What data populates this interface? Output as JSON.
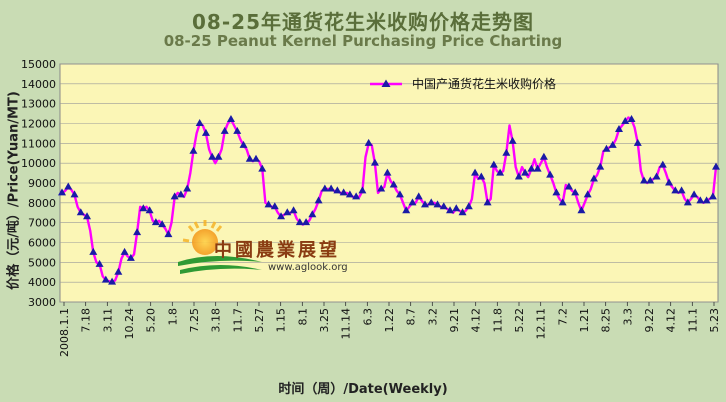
{
  "title_zh": "08-25年通货花生米收购价格走势图",
  "title_en": "08-25 Peanut Kernel Purchasing Price Charting",
  "logo": {
    "name": "中國農業展望",
    "url": "www.aglook.org"
  },
  "colors": {
    "plot_bg": "#fbf6b6",
    "outer_bg": "#c9dcb4",
    "line": "#ff00ff",
    "marker": "#1a1aa6"
  },
  "chart_data": {
    "type": "line",
    "xlabel": "时间（周）/Date(Weekly)",
    "ylabel": "价格（元/吨）/Price(Yuan/MT)",
    "ylim": [
      3000,
      15000
    ],
    "yticks": [
      3000,
      4000,
      5000,
      6000,
      7000,
      8000,
      9000,
      10000,
      11000,
      12000,
      13000,
      14000,
      15000
    ],
    "grid": true,
    "legend_position": "top-right",
    "x_tick_labels": [
      "2008.1.1",
      "7.18",
      "3.11",
      "10.24",
      "5.20",
      "1.8",
      "7.25",
      "3.18",
      "11.7",
      "5.27",
      "1.15",
      "8.1",
      "3.25",
      "11.14",
      "6.3",
      "1.22",
      "8.7",
      "3.2",
      "9.21",
      "4.12",
      "11.8",
      "5.22",
      "12.11",
      "7.2",
      "1.21",
      "8.25",
      "3.3",
      "9.22",
      "4.12",
      "11.1",
      "5.23"
    ],
    "series": [
      {
        "name": "中国产通货花生米收购价格",
        "values": [
          8500,
          8600,
          8800,
          8650,
          8400,
          7800,
          7500,
          7400,
          7300,
          6600,
          5500,
          5000,
          4900,
          4300,
          4100,
          4050,
          4000,
          4100,
          4500,
          5200,
          5500,
          5300,
          5200,
          5400,
          6500,
          7800,
          7700,
          7800,
          7600,
          7100,
          7000,
          7100,
          6900,
          6700,
          6400,
          7000,
          8300,
          8500,
          8400,
          8300,
          8700,
          9500,
          10600,
          11500,
          12000,
          11900,
          11500,
          10700,
          10300,
          10000,
          10300,
          10700,
          11600,
          12000,
          12200,
          11900,
          11600,
          11200,
          10900,
          10700,
          10200,
          10100,
          10200,
          10100,
          9700,
          8000,
          7900,
          7800,
          7800,
          7500,
          7300,
          7400,
          7500,
          7500,
          7600,
          7200,
          7000,
          6900,
          7000,
          7100,
          7400,
          7700,
          8100,
          8600,
          8700,
          8700,
          8700,
          8600,
          8600,
          8500,
          8500,
          8500,
          8400,
          8300,
          8300,
          8300,
          8600,
          10300,
          11000,
          10900,
          10000,
          8500,
          8700,
          8800,
          9500,
          9100,
          8900,
          8600,
          8400,
          8000,
          7600,
          7800,
          8000,
          8000,
          8300,
          8100,
          7900,
          7900,
          8000,
          8000,
          7900,
          7800,
          7800,
          7700,
          7600,
          7500,
          7700,
          7600,
          7500,
          7600,
          7800,
          8200,
          9500,
          9200,
          9300,
          9000,
          8000,
          8200,
          9900,
          9600,
          9500,
          9600,
          10500,
          11900,
          11100,
          9800,
          9300,
          9800,
          9500,
          9300,
          9700,
          10200,
          9700,
          10000,
          10300,
          9800,
          9400,
          9000,
          8500,
          8200,
          8000,
          8900,
          8800,
          8600,
          8500,
          8000,
          7600,
          8000,
          8400,
          8700,
          9200,
          9400,
          9800,
          10600,
          10700,
          10800,
          10900,
          11200,
          11700,
          11900,
          12100,
          12300,
          12200,
          11800,
          11000,
          9600,
          9100,
          9000,
          9100,
          9200,
          9300,
          9800,
          9900,
          9500,
          9000,
          8800,
          8600,
          8500,
          8600,
          8200,
          8000,
          8200,
          8400,
          8300,
          8100,
          8000,
          8100,
          8200,
          8300,
          9800
        ]
      }
    ]
  }
}
